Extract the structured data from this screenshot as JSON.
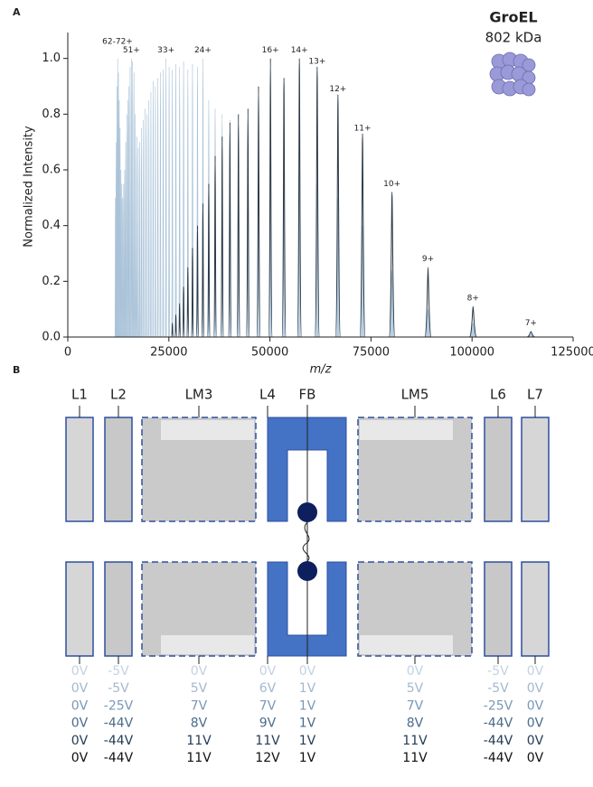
{
  "chart_data": {
    "type": "spectrum",
    "panel_label": "A",
    "xlabel": "m/z",
    "ylabel": "Normalized Intensity",
    "inset_title": "GroEL",
    "inset_subtitle": "802 kDa",
    "xlim": [
      0,
      125000
    ],
    "xticks": [
      0,
      25000,
      50000,
      75000,
      100000,
      125000
    ],
    "ylim": [
      0,
      1.08
    ],
    "yticks": [
      {
        "value": 0,
        "label": "0.0"
      },
      0.2,
      0.4,
      0.6,
      0.8,
      {
        "value": 1,
        "label": "1.0"
      }
    ],
    "x": [
      114570,
      100250,
      89110,
      80200,
      72910,
      66830,
      61690,
      57290,
      53470,
      50130,
      47180,
      44560,
      42210,
      40100,
      38190,
      36450,
      34870,
      33420,
      32080,
      30850,
      29700,
      28640,
      27660,
      26730,
      25870,
      25060,
      24300,
      23590,
      22910,
      22280,
      21680,
      21110,
      20560,
      20050,
      19560,
      19100,
      18650,
      18230,
      17820,
      17440,
      17060,
      16710,
      16370,
      16040,
      15730,
      15420,
      15130,
      14850,
      14580,
      14320,
      14070,
      13830,
      13590,
      13370,
      13150,
      12940,
      12730,
      12530,
      12340,
      12150,
      11970,
      11790
    ],
    "series": [
      {
        "color": "#a9c2d8",
        "values": [
          0.01,
          0.05,
          0.1,
          0.24,
          0.4,
          0.5,
          0.55,
          0.6,
          0.62,
          0.65,
          0.7,
          0.72,
          0.75,
          0.78,
          0.8,
          0.82,
          0.85,
          1.0,
          0.97,
          0.98,
          0.96,
          0.99,
          0.97,
          0.98,
          0.96,
          0.97,
          1.0,
          0.96,
          0.95,
          0.93,
          0.9,
          0.92,
          0.88,
          0.85,
          0.8,
          0.82,
          0.78,
          0.75,
          0.7,
          0.68,
          0.72,
          0.8,
          0.95,
          0.99,
          1.0,
          0.97,
          0.9,
          0.85,
          0.8,
          0.7,
          0.6,
          0.55,
          0.5,
          0.55,
          0.6,
          0.75,
          0.85,
          0.95,
          1.0,
          0.9,
          0.7,
          0.5
        ]
      },
      {
        "color": "#2b3a47",
        "values": [
          0.02,
          0.11,
          0.25,
          0.52,
          0.73,
          0.87,
          0.97,
          1.0,
          0.93,
          1.0,
          0.9,
          0.82,
          0.8,
          0.77,
          0.72,
          0.65,
          0.55,
          0.48,
          0.4,
          0.32,
          0.25,
          0.18,
          0.12,
          0.08,
          0.05,
          null,
          null,
          null,
          null,
          null,
          null,
          null,
          null,
          null,
          null,
          null,
          null,
          null,
          null,
          null,
          null,
          null,
          null,
          null,
          null,
          null,
          null,
          null,
          null,
          null,
          null,
          null,
          null,
          null,
          null,
          null,
          null,
          null,
          null,
          null,
          null,
          null
        ]
      }
    ],
    "annotations": [
      {
        "text": "62-72+",
        "x": 12300,
        "y": 1.06
      },
      {
        "text": "51+",
        "x": 15730,
        "y": 1.03
      },
      {
        "text": "33+",
        "x": 24300,
        "y": 1.03
      },
      {
        "text": "24+",
        "x": 33420,
        "y": 1.03
      },
      {
        "text": "16+",
        "x": 50130,
        "y": 1.03
      },
      {
        "text": "14+",
        "x": 57290,
        "y": 1.03
      },
      {
        "text": "13+",
        "x": 61690,
        "y": 0.99
      },
      {
        "text": "12+",
        "x": 66830,
        "y": 0.89
      },
      {
        "text": "11+",
        "x": 72910,
        "y": 0.75
      },
      {
        "text": "10+",
        "x": 80200,
        "y": 0.55
      },
      {
        "text": "9+",
        "x": 89110,
        "y": 0.28
      },
      {
        "text": "8+",
        "x": 100250,
        "y": 0.14
      },
      {
        "text": "7+",
        "x": 114570,
        "y": 0.05
      }
    ]
  },
  "diagram": {
    "panel_label": "B",
    "electrodes": [
      "L1",
      "L2",
      "LM3",
      "L4",
      "FB",
      "LM5",
      "L6",
      "L7"
    ],
    "row_colors": [
      "#c3d2e2",
      "#a3b8cf",
      "#7a98b6",
      "#4a6b8b",
      "#243c55",
      "#111111"
    ],
    "voltages": [
      [
        "0V",
        "-5V",
        "0V",
        "0V",
        "0V",
        "0V",
        "-5V",
        "0V"
      ],
      [
        "0V",
        "-5V",
        "5V",
        "6V",
        "1V",
        "5V",
        "-5V",
        "0V"
      ],
      [
        "0V",
        "-25V",
        "7V",
        "7V",
        "1V",
        "7V",
        "-25V",
        "0V"
      ],
      [
        "0V",
        "-44V",
        "8V",
        "9V",
        "1V",
        "8V",
        "-44V",
        "0V"
      ],
      [
        "0V",
        "-44V",
        "11V",
        "11V",
        "1V",
        "11V",
        "-44V",
        "0V"
      ],
      [
        "0V",
        "-44V",
        "11V",
        "12V",
        "1V",
        "11V",
        "-44V",
        "0V"
      ]
    ]
  }
}
